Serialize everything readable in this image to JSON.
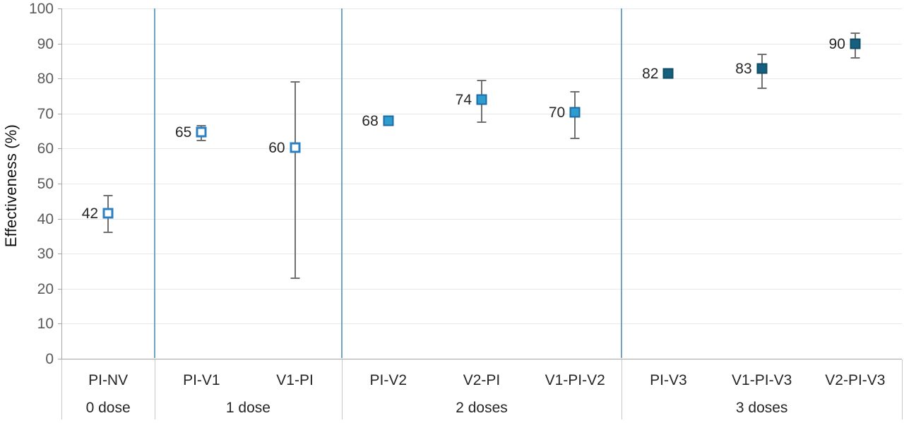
{
  "chart_data": {
    "type": "scatter",
    "title": "",
    "ylabel": "Effectiveness (%)",
    "xlabel": "",
    "ylim": [
      0,
      100
    ],
    "yticks": [
      0,
      10,
      20,
      30,
      40,
      50,
      60,
      70,
      80,
      90,
      100
    ],
    "grid": "horizontal",
    "legend": "none",
    "groups": [
      {
        "label": "0 dose",
        "categories": [
          "PI-NV"
        ]
      },
      {
        "label": "1 dose",
        "categories": [
          "PI-V1",
          "V1-PI"
        ]
      },
      {
        "label": "2 doses",
        "categories": [
          "PI-V2",
          "V2-PI",
          "V1-PI-V2"
        ]
      },
      {
        "label": "3 doses",
        "categories": [
          "PI-V3",
          "V1-PI-V3",
          "V2-PI-V3"
        ]
      }
    ],
    "points": [
      {
        "category": "PI-NV",
        "group": "0 dose",
        "label": "42",
        "value": 42,
        "plotted": 41.5,
        "ci_low": 36,
        "ci_high": 46.5,
        "marker": "open"
      },
      {
        "category": "PI-V1",
        "group": "1 dose",
        "label": "65",
        "value": 65,
        "plotted": 64.7,
        "ci_low": 62.3,
        "ci_high": 66.5,
        "marker": "open"
      },
      {
        "category": "V1-PI",
        "group": "1 dose",
        "label": "60",
        "value": 60,
        "plotted": 60.3,
        "ci_low": 23,
        "ci_high": 79,
        "marker": "open"
      },
      {
        "category": "PI-V2",
        "group": "2 doses",
        "label": "68",
        "value": 68,
        "plotted": 68.0,
        "ci_low": null,
        "ci_high": null,
        "marker": "mid"
      },
      {
        "category": "V2-PI",
        "group": "2 doses",
        "label": "74",
        "value": 74,
        "plotted": 74.0,
        "ci_low": 67.5,
        "ci_high": 79.5,
        "marker": "mid"
      },
      {
        "category": "V1-PI-V2",
        "group": "2 doses",
        "label": "70",
        "value": 70,
        "plotted": 70.3,
        "ci_low": 63,
        "ci_high": 76.3,
        "marker": "mid"
      },
      {
        "category": "PI-V3",
        "group": "3 doses",
        "label": "82",
        "value": 82,
        "plotted": 81.5,
        "ci_low": null,
        "ci_high": null,
        "marker": "dark"
      },
      {
        "category": "V1-PI-V3",
        "group": "3 doses",
        "label": "83",
        "value": 83,
        "plotted": 82.8,
        "ci_low": 77.2,
        "ci_high": 86.9,
        "marker": "dark"
      },
      {
        "category": "V2-PI-V3",
        "group": "3 doses",
        "label": "90",
        "value": 90,
        "plotted": 90.0,
        "ci_low": 85.8,
        "ci_high": 92.9,
        "marker": "dark"
      }
    ],
    "colors": {
      "marker_open_border": "#2b80c4",
      "marker_mid_fill": "#2f9cce",
      "marker_mid_border": "#1a6ba6",
      "marker_dark_fill": "#16607f",
      "marker_dark_border": "#114c67",
      "group_separator": "#5794bd",
      "gridline": "#e8e8e8",
      "axis": "#a6a6a6",
      "error_bar": "#707070",
      "tick_text": "#595959",
      "label_text": "#262626"
    }
  }
}
